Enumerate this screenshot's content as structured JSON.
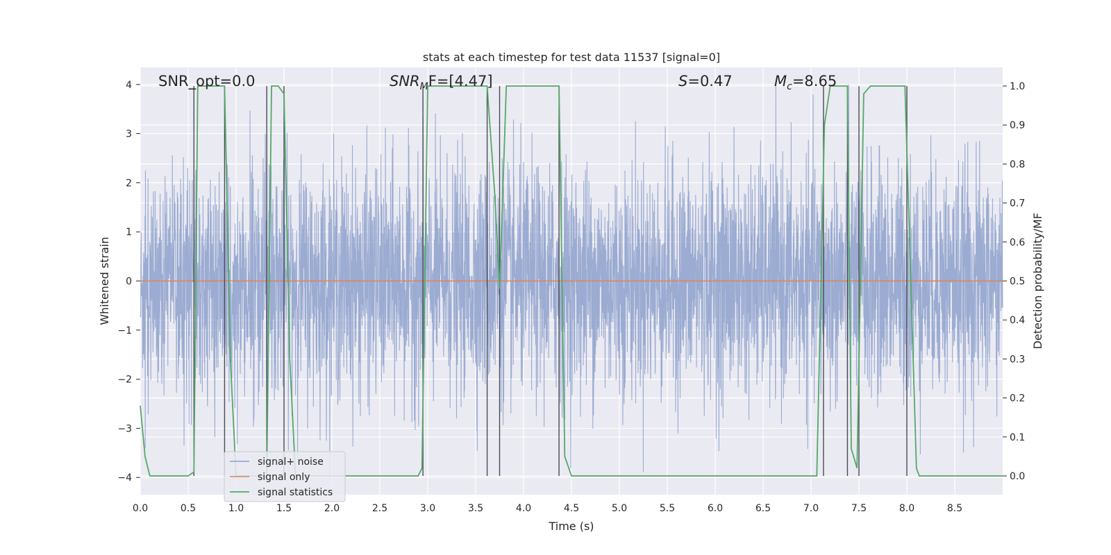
{
  "chart_data": {
    "type": "line",
    "title": "stats at each timestep for test data 11537 [signal=0]",
    "xlabel": "Time (s)",
    "ylabel": "Whitened strain",
    "y2label": "Detection probability/MF",
    "xlim": [
      0.0,
      9.0
    ],
    "ylim": [
      -4.35,
      4.35
    ],
    "y2lim": [
      -0.048,
      1.048
    ],
    "xticks": [
      0.0,
      0.5,
      1.0,
      1.5,
      2.0,
      2.5,
      3.0,
      3.5,
      4.0,
      4.5,
      5.0,
      5.5,
      6.0,
      6.5,
      7.0,
      7.5,
      8.0,
      8.5
    ],
    "xtick_labels": [
      "0.0",
      "0.5",
      "1.0",
      "1.5",
      "2.0",
      "2.5",
      "3.0",
      "3.5",
      "4.0",
      "4.5",
      "5.0",
      "5.5",
      "6.0",
      "6.5",
      "7.0",
      "7.5",
      "8.0",
      "8.5"
    ],
    "yticks": [
      -4,
      -3,
      -2,
      -1,
      0,
      1,
      2,
      3,
      4
    ],
    "ytick_labels": [
      "−4",
      "−3",
      "−2",
      "−1",
      "0",
      "1",
      "2",
      "3",
      "4"
    ],
    "y2ticks": [
      0.0,
      0.1,
      0.2,
      0.3,
      0.4,
      0.5,
      0.6,
      0.7,
      0.8,
      0.9,
      1.0
    ],
    "y2tick_labels": [
      "0.0",
      "0.1",
      "0.2",
      "0.3",
      "0.4",
      "0.5",
      "0.6",
      "0.7",
      "0.8",
      "0.9",
      "1.0"
    ],
    "grid": true,
    "legend_position": "lower-left",
    "annotations": {
      "snr_opt": "SNR_opt=0.0",
      "snr_mf": "SNR",
      "snr_mf_sub": "M",
      "snr_mf_rest": "F=[4.47]",
      "s_stat_sym": "S",
      "s_stat_rest": "=0.47",
      "mc_sym": "M",
      "mc_sub": "c",
      "mc_rest": "=8.65"
    },
    "series": [
      {
        "name": "signal+ noise",
        "color": "#8da0cb",
        "axis": "left",
        "amplitude_range": [
          -4.0,
          4.0
        ],
        "note_only_visual_noise": ""
      },
      {
        "name": "signal only",
        "color": "#dd8452",
        "axis": "left",
        "x": [
          0.0,
          9.0
        ],
        "y": [
          0.0,
          0.0
        ]
      },
      {
        "name": "signal statistics",
        "color": "#55a868",
        "axis": "right",
        "x": [
          0.0,
          0.05,
          0.1,
          0.5,
          0.56,
          0.6,
          0.62,
          0.88,
          0.94,
          1.0,
          1.32,
          1.37,
          1.44,
          1.5,
          1.56,
          1.62,
          2.9,
          2.94,
          3.0,
          3.62,
          3.7,
          3.75,
          3.82,
          4.37,
          4.43,
          4.5,
          7.06,
          7.14,
          7.2,
          7.38,
          7.42,
          7.48,
          7.55,
          7.62,
          7.98,
          8.1,
          8.13,
          9.0
        ],
        "y": [
          0.18,
          0.05,
          0.0,
          0.0,
          0.01,
          1.0,
          1.0,
          1.0,
          0.3,
          0.0,
          0.0,
          1.0,
          1.0,
          0.98,
          0.3,
          0.0,
          0.0,
          0.02,
          1.0,
          1.0,
          0.72,
          0.48,
          1.0,
          1.0,
          0.05,
          0.0,
          0.0,
          0.9,
          1.0,
          1.0,
          0.07,
          0.02,
          0.98,
          1.0,
          1.0,
          0.02,
          0.0,
          0.0
        ]
      }
    ],
    "vlines": [
      0.56,
      0.88,
      1.32,
      1.5,
      2.95,
      3.62,
      3.75,
      4.37,
      7.13,
      7.38,
      7.5,
      8.0
    ]
  }
}
